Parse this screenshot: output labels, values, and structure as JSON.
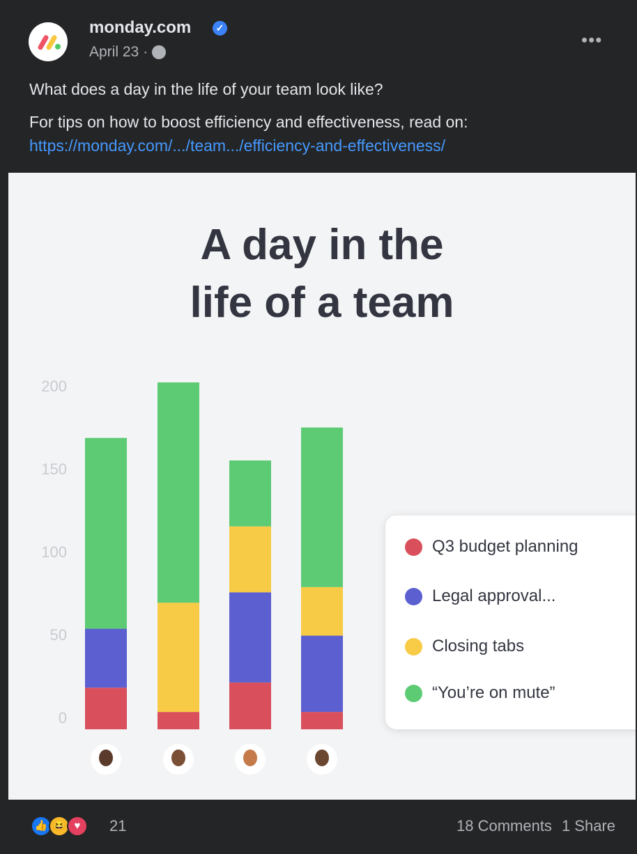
{
  "post": {
    "author": "monday.com",
    "date": "April 23",
    "separator": "·",
    "privacy_icon": "globe-icon",
    "more_icon": "•••",
    "text_line1": "What does a day in the life of your team look like?",
    "text_line2": "For tips on how to boost efficiency and effectiveness, read on:",
    "link": "https://monday.com/.../team.../efficiency-and-effectiveness/"
  },
  "image": {
    "title_line1": "A day in the",
    "title_line2": "life of a team"
  },
  "chart_data": {
    "type": "bar",
    "stacked": true,
    "categories": [
      "Person 1",
      "Person 2",
      "Person 3",
      "Person 4"
    ],
    "yticks": [
      0,
      50,
      100,
      150,
      200
    ],
    "ylim": [
      0,
      200
    ],
    "legend_position": "right",
    "series": [
      {
        "name": "Q3 budget planning",
        "color": "#d94f5c",
        "values": [
          24,
          10,
          27,
          10
        ]
      },
      {
        "name": "Legal approval...",
        "color": "#5b5fd0",
        "values": [
          34,
          0,
          52,
          44
        ]
      },
      {
        "name": "Closing tabs",
        "color": "#f7cb45",
        "values": [
          0,
          63,
          38,
          28
        ]
      },
      {
        "name": "“You’re on mute”",
        "color": "#5ccb73",
        "values": [
          110,
          127,
          38,
          92
        ]
      }
    ]
  },
  "footer": {
    "reaction_count": "21",
    "comments": "18 Comments",
    "shares": "1 Share"
  }
}
